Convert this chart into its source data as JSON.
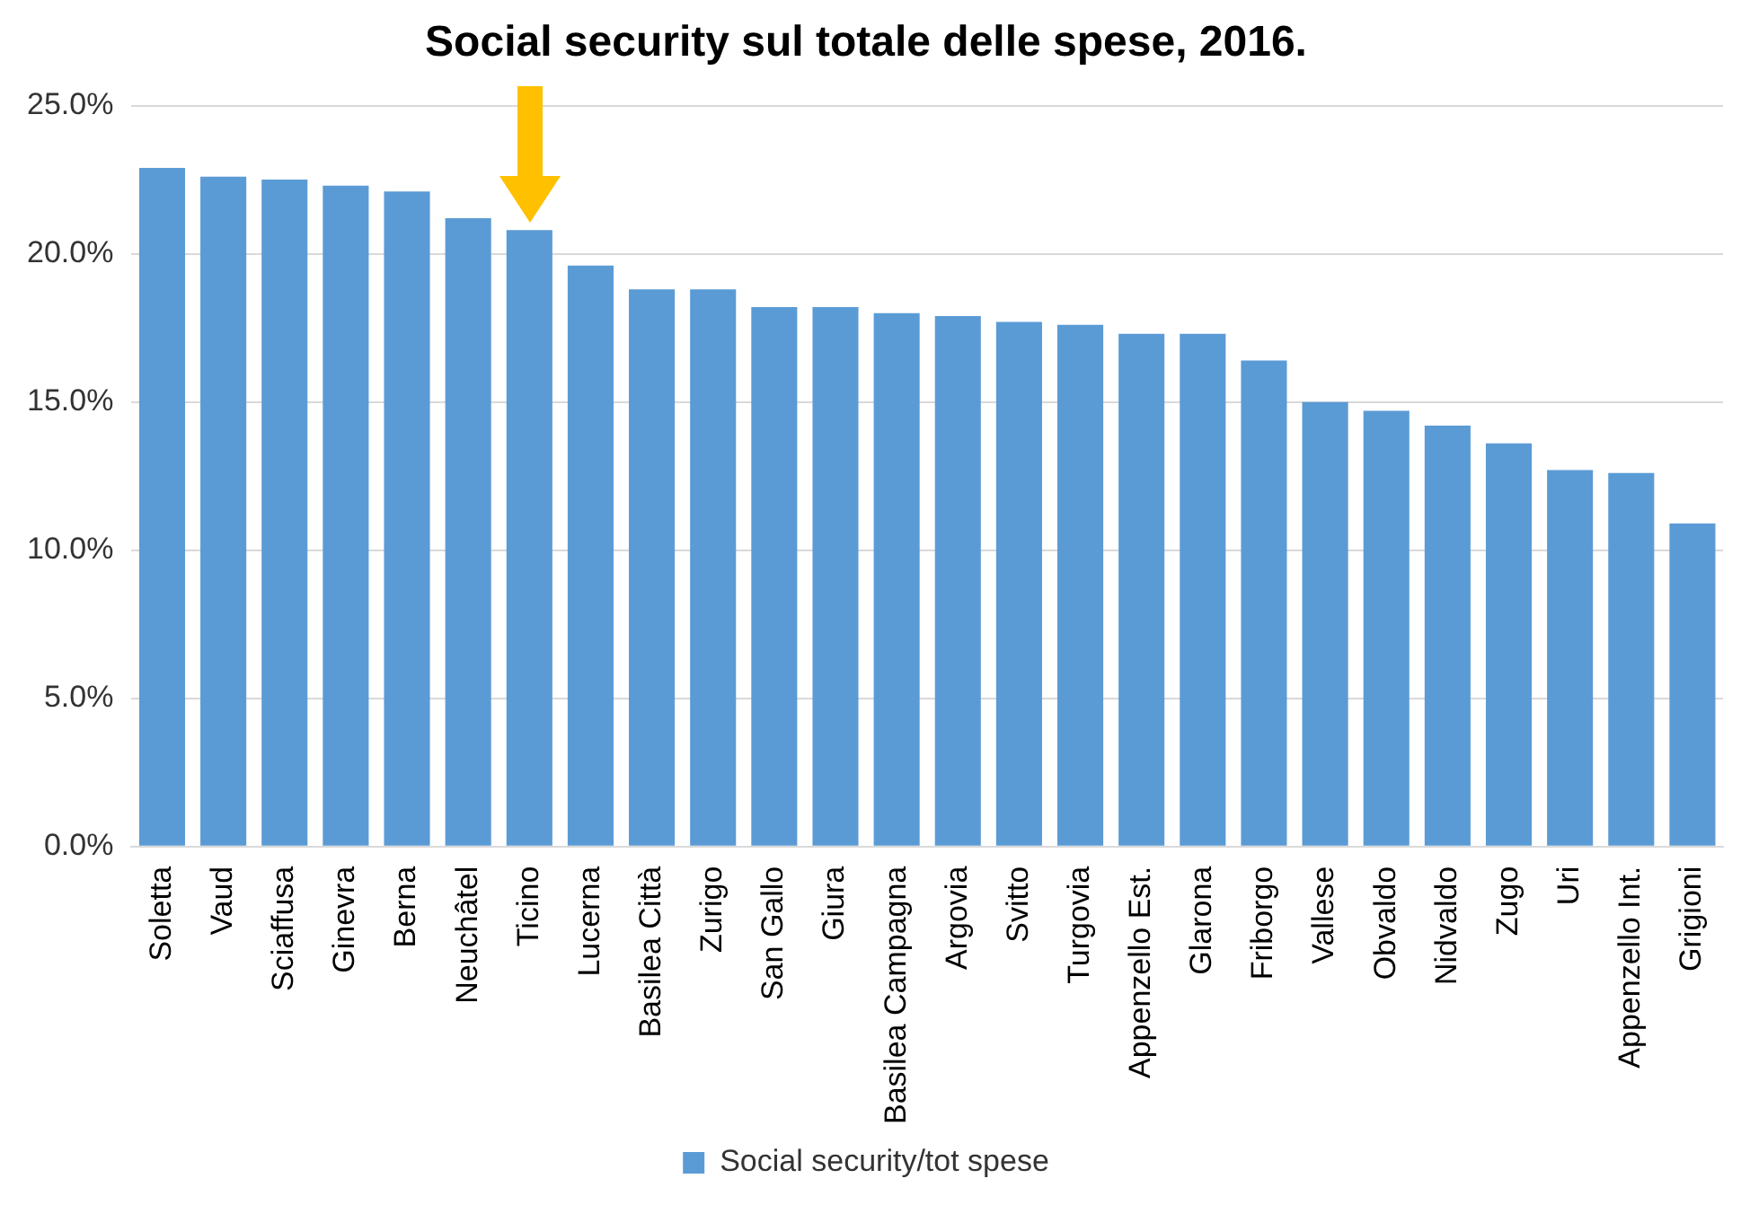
{
  "chart_data": {
    "type": "bar",
    "title": "Social security sul totale delle spese, 2016.",
    "categories": [
      "Soletta",
      "Vaud",
      "Sciaffusa",
      "Ginevra",
      "Berna",
      "Neuchâtel",
      "Ticino",
      "Lucerna",
      "Basilea Città",
      "Zurigo",
      "San Gallo",
      "Giura",
      "Basilea Campagna",
      "Argovia",
      "Svitto",
      "Turgovia",
      "Appenzello Est.",
      "Glarona",
      "Friborgo",
      "Vallese",
      "Obvaldo",
      "Nidvaldo",
      "Zugo",
      "Uri",
      "Appenzello Int.",
      "Grigioni"
    ],
    "series": [
      {
        "name": "Social security/tot spese",
        "color": "#5b9bd5",
        "values": [
          22.9,
          22.6,
          22.5,
          22.3,
          22.1,
          21.2,
          20.8,
          19.6,
          18.8,
          18.8,
          18.2,
          18.2,
          18.0,
          17.9,
          17.7,
          17.6,
          17.3,
          17.3,
          16.4,
          15.0,
          14.7,
          14.2,
          13.6,
          12.7,
          12.6,
          10.9
        ]
      }
    ],
    "ylim": [
      0,
      25
    ],
    "yticks": [
      {
        "value": 0,
        "label": "0.0%"
      },
      {
        "value": 5,
        "label": "5.0%"
      },
      {
        "value": 10,
        "label": "10.0%"
      },
      {
        "value": 15,
        "label": "15.0%"
      },
      {
        "value": 20,
        "label": "20.0%"
      },
      {
        "value": 25,
        "label": "25.0%"
      }
    ],
    "grid": "y",
    "legend": "bottom"
  }
}
